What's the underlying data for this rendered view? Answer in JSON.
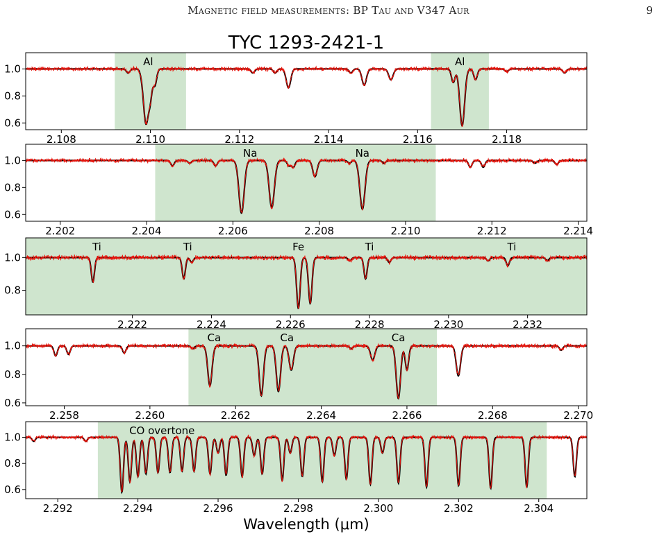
{
  "page": {
    "running_title": "Magnetic field measurements: BP Tau and V347 Aur",
    "page_number": "9"
  },
  "chart_data": [
    {
      "type": "line",
      "title": "TYC 1293-2421-1",
      "xlim": [
        2.1072,
        2.1198
      ],
      "ylim": [
        0.55,
        1.12
      ],
      "xticks": [
        2.108,
        2.11,
        2.112,
        2.114,
        2.116,
        2.118
      ],
      "xtick_labels": [
        "2.108",
        "2.110",
        "2.112",
        "2.114",
        "2.116",
        "2.118"
      ],
      "yticks": [
        0.6,
        0.8,
        1.0
      ],
      "ytick_labels": [
        "0.6",
        "0.8",
        "1.0"
      ],
      "shaded_regions": [
        [
          2.1092,
          2.1108
        ],
        [
          2.1163,
          2.1176
        ]
      ],
      "annotations": [
        {
          "text": "Al",
          "x": 2.10995
        },
        {
          "text": "Al",
          "x": 2.11695
        }
      ],
      "lines": [
        {
          "center": 2.1095,
          "depth": 0.03,
          "width": 4e-05
        },
        {
          "center": 2.1098,
          "depth": 0.02,
          "width": 4e-05
        },
        {
          "center": 2.1099,
          "depth": 0.4,
          "width": 5.5e-05
        },
        {
          "center": 2.1101,
          "depth": 0.12,
          "width": 4e-05
        },
        {
          "center": 2.11,
          "depth": 0.18,
          "width": 4e-05
        },
        {
          "center": 2.1131,
          "depth": 0.14,
          "width": 5e-05
        },
        {
          "center": 2.1128,
          "depth": 0.03,
          "width": 4e-05
        },
        {
          "center": 2.1148,
          "depth": 0.12,
          "width": 5e-05
        },
        {
          "center": 2.1145,
          "depth": 0.03,
          "width": 4e-05
        },
        {
          "center": 2.1154,
          "depth": 0.08,
          "width": 5e-05
        },
        {
          "center": 2.1123,
          "depth": 0.03,
          "width": 4e-05
        },
        {
          "center": 2.1168,
          "depth": 0.1,
          "width": 4e-05
        },
        {
          "center": 2.117,
          "depth": 0.42,
          "width": 5.5e-05
        },
        {
          "center": 2.1173,
          "depth": 0.08,
          "width": 4e-05
        },
        {
          "center": 2.1193,
          "depth": 0.03,
          "width": 4e-05
        },
        {
          "center": 2.118,
          "depth": 0.02,
          "width": 4e-05
        }
      ]
    },
    {
      "type": "line",
      "title": "",
      "xlim": [
        2.2012,
        2.2142
      ],
      "ylim": [
        0.55,
        1.12
      ],
      "xticks": [
        2.202,
        2.204,
        2.206,
        2.208,
        2.21,
        2.212,
        2.214
      ],
      "xtick_labels": [
        "2.202",
        "2.204",
        "2.206",
        "2.208",
        "2.210",
        "2.212",
        "2.214"
      ],
      "yticks": [
        0.6,
        0.8,
        1.0
      ],
      "ytick_labels": [
        "0.6",
        "0.8",
        "1.0"
      ],
      "shaded_regions": [
        [
          2.2042,
          2.2107
        ]
      ],
      "annotations": [
        {
          "text": "Na",
          "x": 2.2064
        },
        {
          "text": "Na",
          "x": 2.209
        }
      ],
      "lines": [
        {
          "center": 2.2046,
          "depth": 0.04,
          "width": 4e-05
        },
        {
          "center": 2.205,
          "depth": 0.02,
          "width": 4e-05
        },
        {
          "center": 2.2056,
          "depth": 0.04,
          "width": 4e-05
        },
        {
          "center": 2.2062,
          "depth": 0.39,
          "width": 6e-05
        },
        {
          "center": 2.2069,
          "depth": 0.35,
          "width": 6e-05
        },
        {
          "center": 2.2073,
          "depth": 0.04,
          "width": 4e-05
        },
        {
          "center": 2.2074,
          "depth": 0.05,
          "width": 4e-05
        },
        {
          "center": 2.2079,
          "depth": 0.12,
          "width": 5e-05
        },
        {
          "center": 2.2087,
          "depth": 0.02,
          "width": 4e-05
        },
        {
          "center": 2.209,
          "depth": 0.36,
          "width": 6e-05
        },
        {
          "center": 2.2095,
          "depth": 0.02,
          "width": 4e-05
        },
        {
          "center": 2.2115,
          "depth": 0.05,
          "width": 4e-05
        },
        {
          "center": 2.2118,
          "depth": 0.05,
          "width": 4e-05
        },
        {
          "center": 2.213,
          "depth": 0.02,
          "width": 4e-05
        },
        {
          "center": 2.2135,
          "depth": 0.03,
          "width": 4e-05
        }
      ]
    },
    {
      "type": "line",
      "title": "",
      "xlim": [
        2.2193,
        2.2335
      ],
      "ylim": [
        0.65,
        1.12
      ],
      "xticks": [
        2.222,
        2.224,
        2.226,
        2.228,
        2.23,
        2.232
      ],
      "xtick_labels": [
        "2.222",
        "2.224",
        "2.226",
        "2.228",
        "2.230",
        "2.232"
      ],
      "yticks": [
        0.8,
        1.0
      ],
      "ytick_labels": [
        "0.8",
        "1.0"
      ],
      "shaded_regions": [
        [
          2.2193,
          2.2335
        ]
      ],
      "annotations": [
        {
          "text": "Ti",
          "x": 2.2211
        },
        {
          "text": "Ti",
          "x": 2.2234
        },
        {
          "text": "Fe",
          "x": 2.2262
        },
        {
          "text": "Ti",
          "x": 2.228
        },
        {
          "text": "Ti",
          "x": 2.2316
        }
      ],
      "lines": [
        {
          "center": 2.221,
          "depth": 0.15,
          "width": 4e-05
        },
        {
          "center": 2.2233,
          "depth": 0.13,
          "width": 4e-05
        },
        {
          "center": 2.2235,
          "depth": 0.03,
          "width": 4e-05
        },
        {
          "center": 2.2262,
          "depth": 0.31,
          "width": 4.5e-05
        },
        {
          "center": 2.2265,
          "depth": 0.28,
          "width": 4.5e-05
        },
        {
          "center": 2.2279,
          "depth": 0.13,
          "width": 4e-05
        },
        {
          "center": 2.2285,
          "depth": 0.03,
          "width": 4e-05
        },
        {
          "center": 2.2275,
          "depth": 0.02,
          "width": 4e-05
        },
        {
          "center": 2.2315,
          "depth": 0.05,
          "width": 4e-05
        },
        {
          "center": 2.231,
          "depth": 0.02,
          "width": 4e-05
        },
        {
          "center": 2.2325,
          "depth": 0.02,
          "width": 4e-05
        }
      ]
    },
    {
      "type": "line",
      "title": "",
      "xlim": [
        2.2571,
        2.2702
      ],
      "ylim": [
        0.58,
        1.12
      ],
      "xticks": [
        2.258,
        2.26,
        2.262,
        2.264,
        2.266,
        2.268,
        2.27
      ],
      "xtick_labels": [
        "2.258",
        "2.260",
        "2.262",
        "2.264",
        "2.266",
        "2.268",
        "2.270"
      ],
      "yticks": [
        0.6,
        0.8,
        1.0
      ],
      "ytick_labels": [
        "0.6",
        "0.8",
        "1.0"
      ],
      "shaded_regions": [
        [
          2.2609,
          2.2667
        ]
      ],
      "annotations": [
        {
          "text": "Ca",
          "x": 2.2615
        },
        {
          "text": "Ca",
          "x": 2.2632
        },
        {
          "text": "Ca",
          "x": 2.2658
        }
      ],
      "lines": [
        {
          "center": 2.2578,
          "depth": 0.07,
          "width": 4e-05
        },
        {
          "center": 2.2581,
          "depth": 0.06,
          "width": 4e-05
        },
        {
          "center": 2.2594,
          "depth": 0.05,
          "width": 4e-05
        },
        {
          "center": 2.261,
          "depth": 0.02,
          "width": 4e-05
        },
        {
          "center": 2.2614,
          "depth": 0.28,
          "width": 5e-05
        },
        {
          "center": 2.2626,
          "depth": 0.35,
          "width": 5e-05
        },
        {
          "center": 2.263,
          "depth": 0.32,
          "width": 5e-05
        },
        {
          "center": 2.2633,
          "depth": 0.17,
          "width": 5e-05
        },
        {
          "center": 2.2652,
          "depth": 0.1,
          "width": 5e-05
        },
        {
          "center": 2.2658,
          "depth": 0.37,
          "width": 5e-05
        },
        {
          "center": 2.266,
          "depth": 0.17,
          "width": 4e-05
        },
        {
          "center": 2.2672,
          "depth": 0.21,
          "width": 5e-05
        },
        {
          "center": 2.2696,
          "depth": 0.03,
          "width": 4e-05
        },
        {
          "center": 2.2647,
          "depth": 0.02,
          "width": 4e-05
        }
      ]
    },
    {
      "type": "line",
      "title": "",
      "xlim": [
        2.2912,
        2.3052
      ],
      "ylim": [
        0.53,
        1.12
      ],
      "xticks": [
        2.292,
        2.294,
        2.296,
        2.298,
        2.3,
        2.302,
        2.304
      ],
      "xtick_labels": [
        "2.292",
        "2.294",
        "2.296",
        "2.298",
        "2.300",
        "2.302",
        "2.304"
      ],
      "yticks": [
        0.6,
        0.8,
        1.0
      ],
      "ytick_labels": [
        "0.6",
        "0.8",
        "1.0"
      ],
      "xlabel": "Wavelength (μm)",
      "shaded_regions": [
        [
          2.293,
          2.3042
        ]
      ],
      "annotations": [
        {
          "text": "CO overtone",
          "x": 2.2946
        }
      ],
      "lines": [
        {
          "center": 2.2936,
          "depth": 0.42,
          "width": 4e-05
        },
        {
          "center": 2.2938,
          "depth": 0.34,
          "width": 4e-05
        },
        {
          "center": 2.294,
          "depth": 0.3,
          "width": 4e-05
        },
        {
          "center": 2.2942,
          "depth": 0.28,
          "width": 4e-05
        },
        {
          "center": 2.2945,
          "depth": 0.27,
          "width": 4e-05
        },
        {
          "center": 2.2948,
          "depth": 0.27,
          "width": 4e-05
        },
        {
          "center": 2.2951,
          "depth": 0.26,
          "width": 4e-05
        },
        {
          "center": 2.2954,
          "depth": 0.26,
          "width": 4e-05
        },
        {
          "center": 2.2958,
          "depth": 0.28,
          "width": 4e-05
        },
        {
          "center": 2.2962,
          "depth": 0.29,
          "width": 4e-05
        },
        {
          "center": 2.2966,
          "depth": 0.3,
          "width": 4e-05
        },
        {
          "center": 2.2971,
          "depth": 0.28,
          "width": 4e-05
        },
        {
          "center": 2.2976,
          "depth": 0.33,
          "width": 4e-05
        },
        {
          "center": 2.2981,
          "depth": 0.3,
          "width": 4e-05
        },
        {
          "center": 2.2986,
          "depth": 0.34,
          "width": 4e-05
        },
        {
          "center": 2.2992,
          "depth": 0.32,
          "width": 4e-05
        },
        {
          "center": 2.2998,
          "depth": 0.36,
          "width": 4e-05
        },
        {
          "center": 2.3005,
          "depth": 0.35,
          "width": 4e-05
        },
        {
          "center": 2.3012,
          "depth": 0.38,
          "width": 4e-05
        },
        {
          "center": 2.302,
          "depth": 0.37,
          "width": 4e-05
        },
        {
          "center": 2.3028,
          "depth": 0.39,
          "width": 4e-05
        },
        {
          "center": 2.3037,
          "depth": 0.38,
          "width": 4e-05
        },
        {
          "center": 2.3049,
          "depth": 0.3,
          "width": 4e-05
        },
        {
          "center": 2.296,
          "depth": 0.12,
          "width": 4e-05
        },
        {
          "center": 2.2969,
          "depth": 0.14,
          "width": 4e-05
        },
        {
          "center": 2.2978,
          "depth": 0.12,
          "width": 4e-05
        },
        {
          "center": 2.2989,
          "depth": 0.14,
          "width": 4e-05
        },
        {
          "center": 2.3001,
          "depth": 0.12,
          "width": 4e-05
        },
        {
          "center": 2.2914,
          "depth": 0.03,
          "width": 4e-05
        },
        {
          "center": 2.2927,
          "depth": 0.03,
          "width": 4e-05
        }
      ]
    }
  ]
}
